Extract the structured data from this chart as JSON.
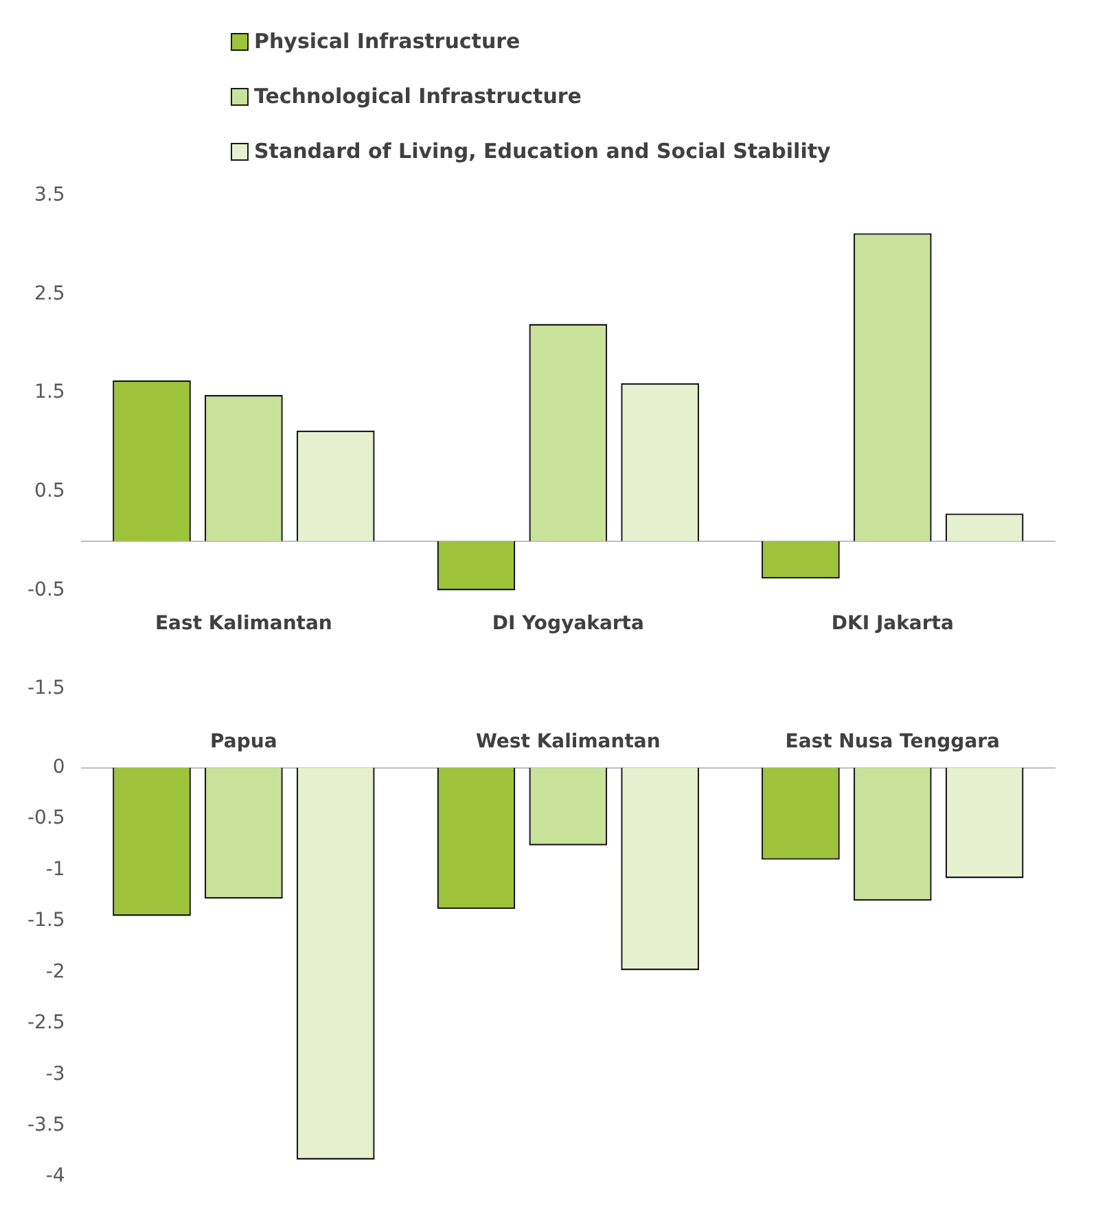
{
  "chart_data": [
    {
      "type": "bar",
      "categories": [
        "East Kalimantan",
        "DI Yogyakarta",
        "DKI Jakarta"
      ],
      "legend": "top",
      "grid": false,
      "ylim": [
        -1.5,
        3.5
      ],
      "yticks": [
        3.5,
        2.5,
        1.5,
        0.5,
        -0.5,
        -1.5
      ],
      "series": [
        {
          "name": "Physical Infrastructure",
          "color": "#9dc33b",
          "values": [
            1.63,
            -0.5,
            -0.38
          ]
        },
        {
          "name": "Technological Infrastructure",
          "color": "#c9e29a",
          "values": [
            1.48,
            2.2,
            3.12
          ]
        },
        {
          "name": "Standard of Living, Education and Social Stability",
          "color": "#e6f0cf",
          "values": [
            1.12,
            1.6,
            0.28
          ]
        }
      ]
    },
    {
      "type": "bar",
      "categories": [
        "Papua",
        "West Kalimantan",
        "East Nusa Tenggara"
      ],
      "grid": false,
      "ylim": [
        -4,
        0
      ],
      "yticks": [
        0,
        -0.5,
        -1,
        -1.5,
        -2,
        -2.5,
        -3,
        -3.5,
        -4
      ],
      "series": [
        {
          "color": "#9dc33b",
          "values": [
            -1.45,
            -1.38,
            -0.9
          ]
        },
        {
          "color": "#c9e29a",
          "values": [
            -1.28,
            -0.76,
            -1.3
          ]
        },
        {
          "color": "#e6f0cf",
          "values": [
            -3.83,
            -1.98,
            -1.08
          ]
        }
      ]
    }
  ]
}
